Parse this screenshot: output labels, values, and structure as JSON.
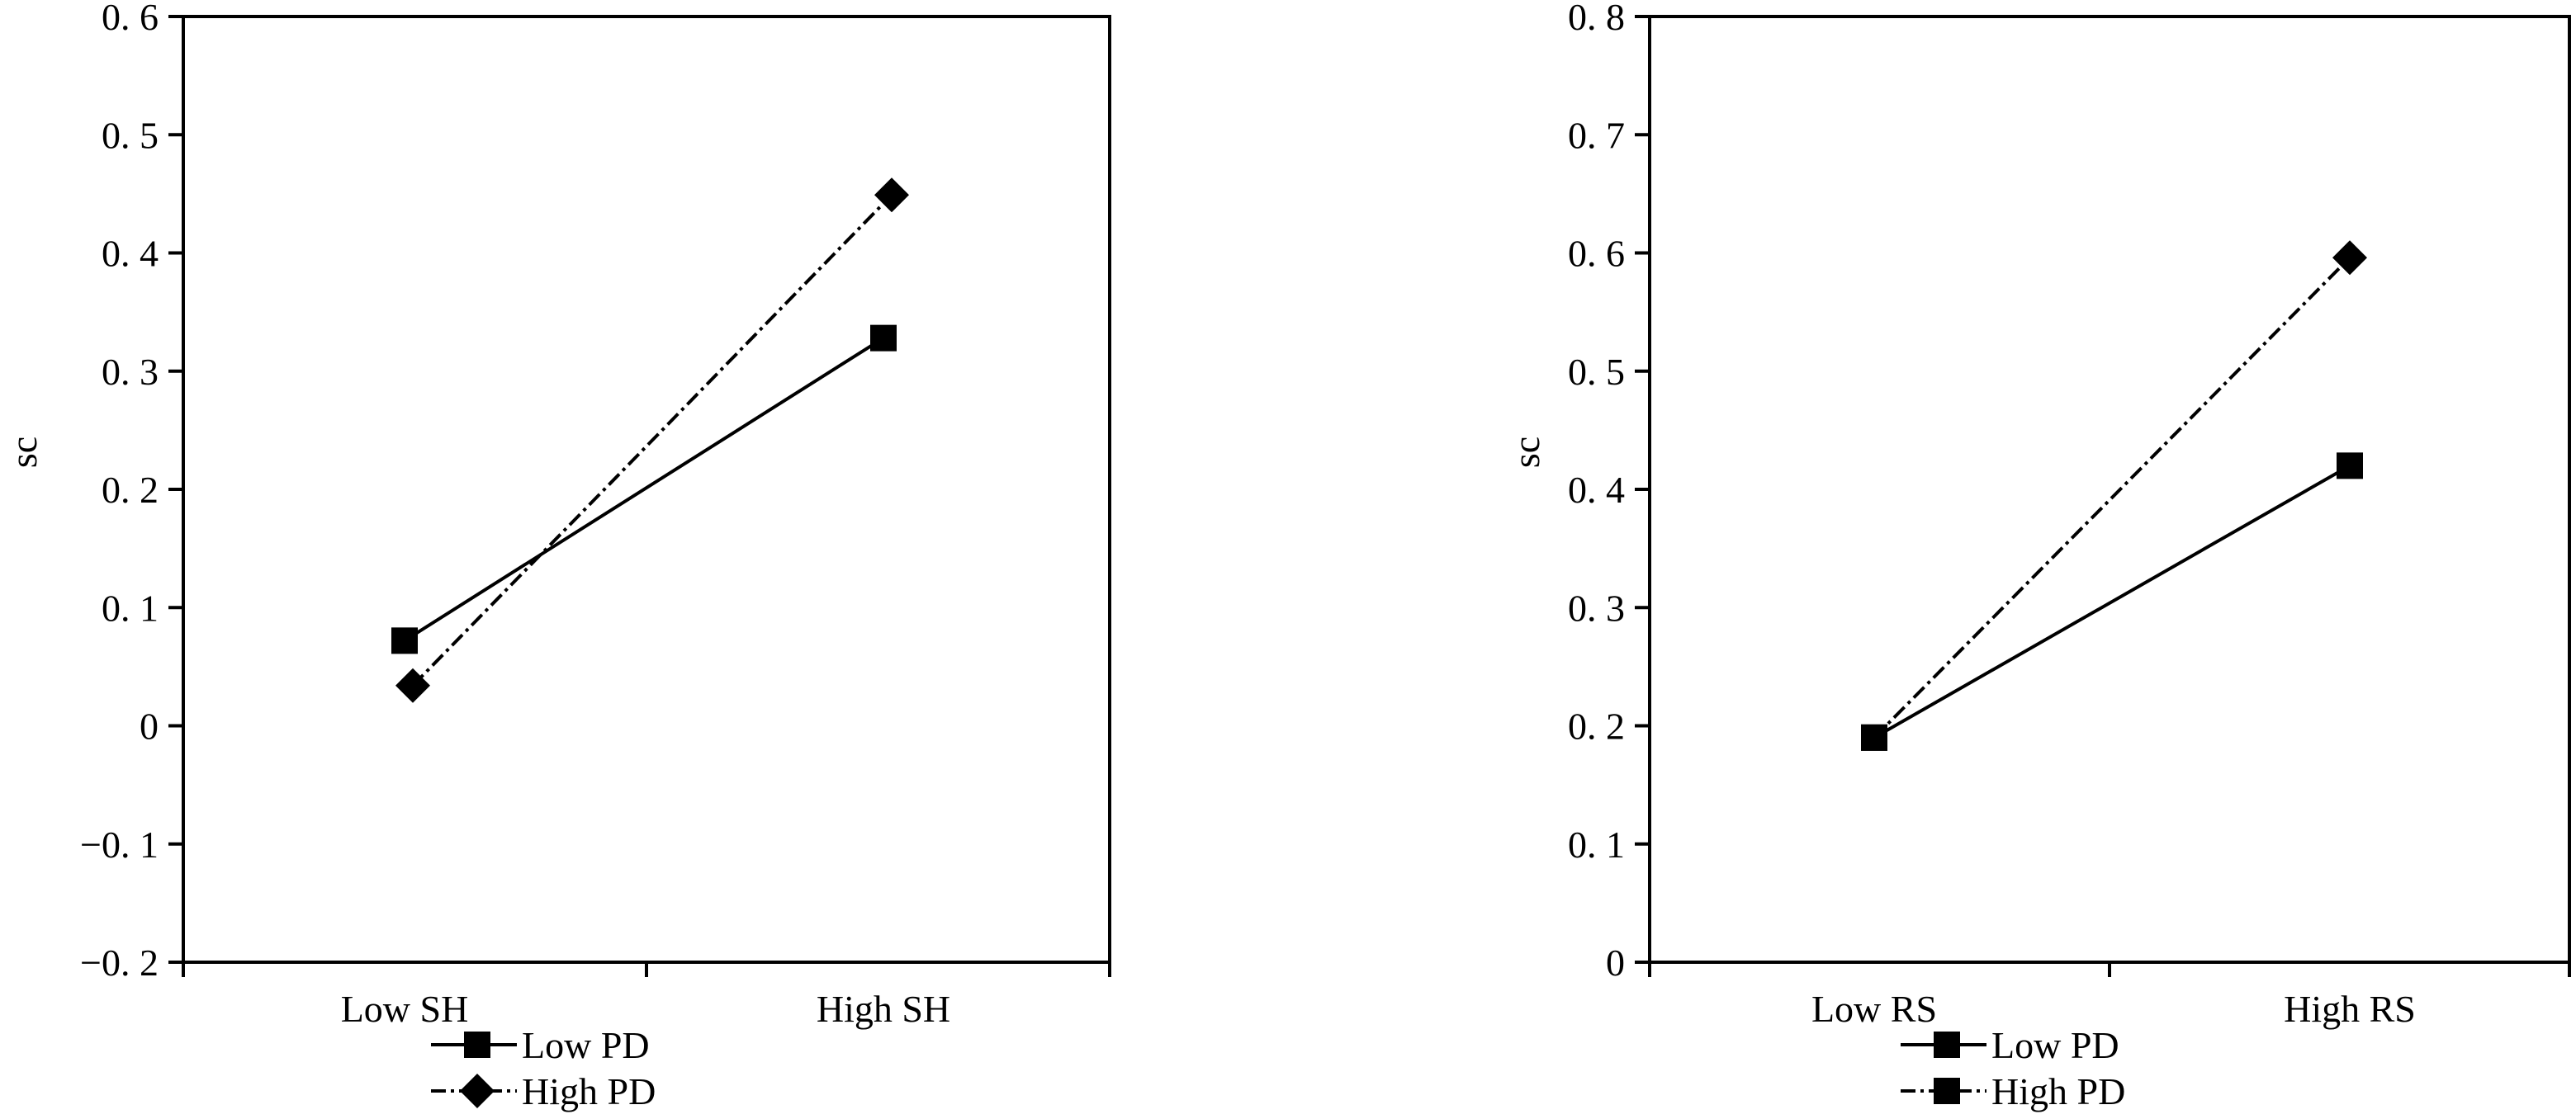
{
  "chart_data": [
    {
      "type": "line",
      "ylabel": "sc",
      "xlabel": "",
      "categories": [
        "Low SH",
        "High SH"
      ],
      "ylim": [
        -0.2,
        0.6
      ],
      "yticks": [
        -0.2,
        -0.1,
        0,
        0.1,
        0.2,
        0.3,
        0.4,
        0.5,
        0.6
      ],
      "ytick_labels": [
        "−0. 2",
        "−0. 1",
        "0",
        "0. 1",
        "0. 2",
        "0. 3",
        "0. 4",
        "0. 5",
        "0. 6"
      ],
      "grid": false,
      "legend_placement": "bottom",
      "series": [
        {
          "name": "Low PD",
          "values": [
            0.072,
            0.328
          ],
          "marker": "square",
          "line": "solid",
          "color": "#000000"
        },
        {
          "name": "High PD",
          "values": [
            0.034,
            0.449
          ],
          "marker": "diamond",
          "line": "dashed",
          "color": "#000000"
        }
      ]
    },
    {
      "type": "line",
      "ylabel": "sc",
      "xlabel": "",
      "categories": [
        "Low RS",
        "High RS"
      ],
      "ylim": [
        0,
        0.8
      ],
      "yticks": [
        0,
        0.1,
        0.2,
        0.3,
        0.4,
        0.5,
        0.6,
        0.7,
        0.8
      ],
      "ytick_labels": [
        "0",
        "0. 1",
        "0. 2",
        "0. 3",
        "0. 4",
        "0. 5",
        "0. 6",
        "0. 7",
        "0. 8"
      ],
      "grid": false,
      "legend_placement": "bottom",
      "series": [
        {
          "name": "Low PD",
          "values": [
            0.19,
            0.42
          ],
          "marker": "square",
          "line": "solid",
          "color": "#000000"
        },
        {
          "name": "High PD",
          "values": [
            0.19,
            0.596
          ],
          "marker": "diamond",
          "line": "dashed",
          "color": "#000000"
        }
      ]
    }
  ]
}
